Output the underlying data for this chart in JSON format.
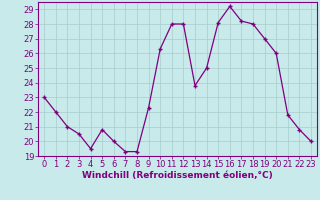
{
  "x": [
    0,
    1,
    2,
    3,
    4,
    5,
    6,
    7,
    8,
    9,
    10,
    11,
    12,
    13,
    14,
    15,
    16,
    17,
    18,
    19,
    20,
    21,
    22,
    23
  ],
  "y": [
    23,
    22,
    21,
    20.5,
    19.5,
    20.8,
    20,
    19.3,
    19.3,
    22.3,
    26.3,
    28,
    28,
    23.8,
    25,
    28.1,
    29.2,
    28.2,
    28,
    27,
    26,
    21.8,
    20.8,
    20
  ],
  "line_color": "#800080",
  "marker_color": "#800080",
  "bg_color": "#c8eaea",
  "grid_color": "#a8cccc",
  "xlabel": "Windchill (Refroidissement éolien,°C)",
  "ylim": [
    19,
    29.5
  ],
  "xlim": [
    -0.5,
    23.5
  ],
  "yticks": [
    19,
    20,
    21,
    22,
    23,
    24,
    25,
    26,
    27,
    28,
    29
  ],
  "xticks": [
    0,
    1,
    2,
    3,
    4,
    5,
    6,
    7,
    8,
    9,
    10,
    11,
    12,
    13,
    14,
    15,
    16,
    17,
    18,
    19,
    20,
    21,
    22,
    23
  ],
  "label_fontsize": 6.5,
  "tick_fontsize": 6.0
}
